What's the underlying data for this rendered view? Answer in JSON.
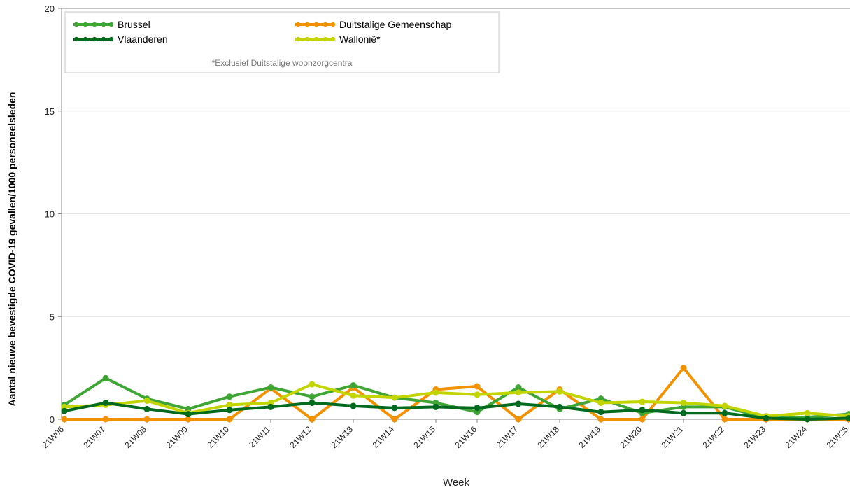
{
  "chart_data": {
    "type": "line",
    "ylabel": "Aantal nieuwe bevestigde COVID-19 gevallen/1000 personeelsleden",
    "xlabel": "Week",
    "ylim": [
      0,
      20
    ],
    "yticks": [
      0,
      5,
      10,
      15,
      20
    ],
    "grid": true,
    "legend_position": "top-left",
    "note": "*Exclusief Duitstalige woonzorgcentra",
    "categories": [
      "21W06",
      "21W07",
      "21W08",
      "21W09",
      "21W10",
      "21W11",
      "21W12",
      "21W13",
      "21W14",
      "21W15",
      "21W16",
      "21W17",
      "21W18",
      "21W19",
      "21W20",
      "21W21",
      "21W22",
      "21W23",
      "21W24",
      "21W25"
    ],
    "series": [
      {
        "name": "Brussel",
        "color": "#3fa535",
        "values": [
          0.7,
          2.0,
          1.0,
          0.5,
          1.1,
          1.55,
          1.1,
          1.65,
          1.05,
          0.8,
          0.35,
          1.55,
          0.5,
          1.0,
          0.3,
          0.6,
          0.6,
          0.05,
          0.1,
          0.25
        ]
      },
      {
        "name": "Duitstalige Gemeenschap",
        "color": "#f39200",
        "values": [
          0.0,
          0.0,
          0.0,
          0.0,
          0.0,
          1.5,
          0.0,
          1.55,
          0.0,
          1.45,
          1.6,
          0.0,
          1.45,
          0.0,
          0.0,
          2.5,
          0.0,
          0.0,
          0.0,
          0.0
        ]
      },
      {
        "name": "Vlaanderen",
        "color": "#006b1e",
        "values": [
          0.4,
          0.8,
          0.5,
          0.25,
          0.45,
          0.6,
          0.8,
          0.65,
          0.55,
          0.6,
          0.55,
          0.75,
          0.6,
          0.35,
          0.45,
          0.3,
          0.3,
          0.05,
          0.0,
          0.05
        ]
      },
      {
        "name": "Wallonië*",
        "color": "#c2d500",
        "values": [
          0.6,
          0.7,
          0.9,
          0.3,
          0.7,
          0.8,
          1.7,
          1.15,
          1.05,
          1.3,
          1.2,
          1.3,
          1.35,
          0.8,
          0.85,
          0.8,
          0.65,
          0.15,
          0.3,
          0.15
        ]
      }
    ]
  }
}
